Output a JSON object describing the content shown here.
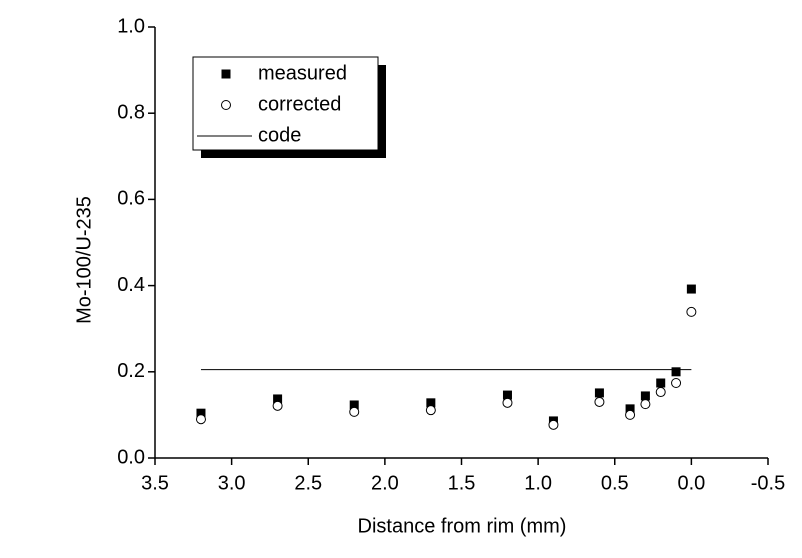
{
  "chart_data": {
    "type": "scatter",
    "xlabel": "Distance from rim (mm)",
    "ylabel": "Mo-100/U-235",
    "xlim": [
      3.5,
      -0.5
    ],
    "ylim": [
      0,
      1
    ],
    "xticks": [
      3.5,
      {
        "value": 3.0,
        "label": "3.0"
      },
      2.5,
      {
        "value": 2.0,
        "label": "2.0"
      },
      1.5,
      {
        "value": 1.0,
        "label": "1.0"
      },
      0.5,
      {
        "value": 0.0,
        "label": "0.0"
      },
      -0.5
    ],
    "yticks": [
      {
        "value": 0.0,
        "label": "0.0"
      },
      0.2,
      0.4,
      0.6,
      0.8,
      {
        "value": 1.0,
        "label": "1.0"
      }
    ],
    "legend": "top-left",
    "series": [
      {
        "name": "measured",
        "color": "#000000",
        "marker": "square",
        "x": [
          3.2,
          2.7,
          2.2,
          1.7,
          1.2,
          0.9,
          0.6,
          0.4,
          0.3,
          0.2,
          0.1,
          0.0
        ],
        "values": [
          0.104,
          0.137,
          0.123,
          0.128,
          0.146,
          0.086,
          0.151,
          0.114,
          0.144,
          0.174,
          0.2,
          0.392
        ]
      },
      {
        "name": "corrected",
        "color": "#000000",
        "marker": "circle",
        "x": [
          3.2,
          2.7,
          2.2,
          1.7,
          1.2,
          0.9,
          0.6,
          0.4,
          0.3,
          0.2,
          0.1,
          0.0
        ],
        "values": [
          0.09,
          0.121,
          0.107,
          0.111,
          0.128,
          0.077,
          0.13,
          0.1,
          0.125,
          0.153,
          0.174,
          0.339
        ]
      },
      {
        "name": "code",
        "color": "#000000",
        "marker": "line",
        "x": [
          3.2,
          0.0
        ],
        "values": [
          0.205,
          0.205
        ]
      }
    ]
  }
}
